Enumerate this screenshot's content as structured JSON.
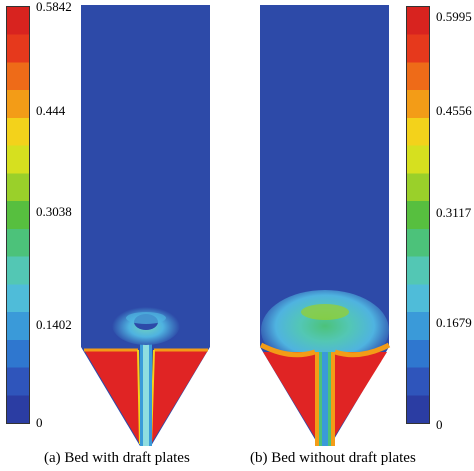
{
  "left_colorbar": {
    "labels": [
      "0.5842",
      "0.444",
      "0.3038",
      "0.1402",
      "0"
    ],
    "colors": [
      "#2b3da3",
      "#2f55bb",
      "#2f77cf",
      "#3a9ad9",
      "#4fbcd9",
      "#53c7b4",
      "#4cc27a",
      "#57bf3f",
      "#9ad02a",
      "#d6e01f",
      "#f3d21b",
      "#f39c17",
      "#ee6b18",
      "#e6391c",
      "#d8231f"
    ]
  },
  "right_colorbar": {
    "labels": [
      "0.5995",
      "0.4556",
      "0.3117",
      "0.1679",
      "0"
    ],
    "colors": [
      "#2b3da3",
      "#2f55bb",
      "#2f77cf",
      "#3a9ad9",
      "#4fbcd9",
      "#53c7b4",
      "#4cc27a",
      "#57bf3f",
      "#9ad02a",
      "#d6e01f",
      "#f3d21b",
      "#f39c17",
      "#ee6b18",
      "#e6391c",
      "#d8231f"
    ]
  },
  "panels": {
    "left_caption": "(a) Bed with draft plates",
    "right_caption": "(b) Bed without draft plates"
  },
  "colors": {
    "background_blue": "#2d4aa8",
    "hot_red": "#e02424"
  }
}
